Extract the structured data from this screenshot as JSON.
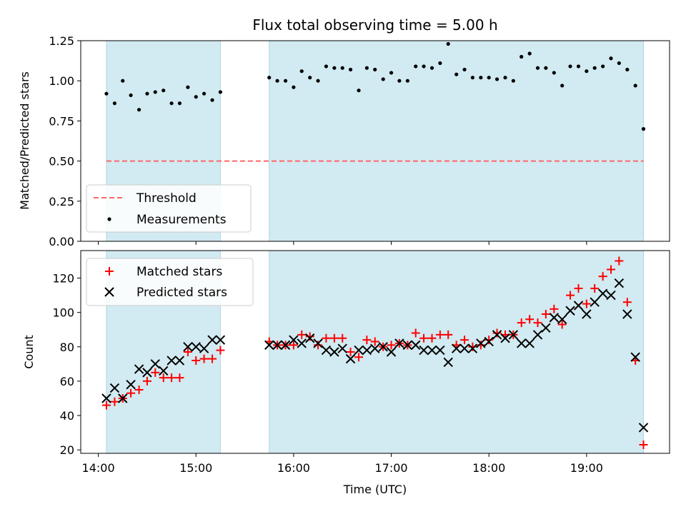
{
  "chart_data": [
    {
      "type": "scatter",
      "title": "Flux total observing time = 5.00 h",
      "ylabel": "Matched/Predicted stars",
      "xlabel": "",
      "x_unit": "hours UTC",
      "xlim": [
        13.82,
        19.85
      ],
      "ylim": [
        0.0,
        1.25
      ],
      "yticks": [
        0.0,
        0.25,
        0.5,
        0.75,
        1.0,
        1.25
      ],
      "ytick_labels": [
        "0.00",
        "0.25",
        "0.50",
        "0.75",
        "1.00",
        "1.25"
      ],
      "xticks": [
        14,
        15,
        16,
        17,
        18,
        19
      ],
      "grid": false,
      "legend_position": "lower-left",
      "shaded_intervals": [
        [
          14.083,
          15.25
        ],
        [
          15.75,
          19.583
        ]
      ],
      "shade_color": "#add8e6",
      "threshold": {
        "name": "Threshold",
        "value": 0.5,
        "xrange": [
          14.083,
          19.583
        ],
        "color": "#ff6666"
      },
      "series": [
        {
          "name": "Measurements",
          "color": "#000000",
          "marker": "dot",
          "x": [
            14.083,
            14.167,
            14.25,
            14.333,
            14.417,
            14.5,
            14.583,
            14.667,
            14.75,
            14.833,
            14.917,
            15.0,
            15.083,
            15.167,
            15.25,
            15.75,
            15.833,
            15.917,
            16.0,
            16.083,
            16.167,
            16.25,
            16.333,
            16.417,
            16.5,
            16.583,
            16.667,
            16.75,
            16.833,
            16.917,
            17.0,
            17.083,
            17.167,
            17.25,
            17.333,
            17.417,
            17.5,
            17.583,
            17.667,
            17.75,
            17.833,
            17.917,
            18.0,
            18.083,
            18.167,
            18.25,
            18.333,
            18.417,
            18.5,
            18.583,
            18.667,
            18.75,
            18.833,
            18.917,
            19.0,
            19.083,
            19.167,
            19.25,
            19.333,
            19.417,
            19.5,
            19.583
          ],
          "y": [
            0.92,
            0.86,
            1.0,
            0.91,
            0.82,
            0.92,
            0.93,
            0.94,
            0.86,
            0.86,
            0.96,
            0.9,
            0.92,
            0.88,
            0.93,
            1.02,
            1.0,
            1.0,
            0.96,
            1.06,
            1.02,
            1.0,
            1.09,
            1.08,
            1.08,
            1.07,
            0.94,
            1.08,
            1.07,
            1.01,
            1.05,
            1.0,
            1.0,
            1.09,
            1.09,
            1.08,
            1.11,
            1.23,
            1.04,
            1.07,
            1.02,
            1.02,
            1.02,
            1.01,
            1.02,
            1.0,
            1.15,
            1.17,
            1.08,
            1.08,
            1.05,
            0.97,
            1.09,
            1.09,
            1.06,
            1.08,
            1.09,
            1.14,
            1.11,
            1.07,
            0.97,
            0.7
          ]
        }
      ]
    },
    {
      "type": "scatter",
      "title": "",
      "ylabel": "Count",
      "xlabel": "Time (UTC)",
      "x_unit": "hours UTC",
      "xlim": [
        13.82,
        19.85
      ],
      "ylim": [
        18,
        136
      ],
      "yticks": [
        20,
        40,
        60,
        80,
        100,
        120
      ],
      "ytick_labels": [
        "20",
        "40",
        "60",
        "80",
        "100",
        "120"
      ],
      "xticks": [
        14,
        15,
        16,
        17,
        18,
        19
      ],
      "xtick_labels": [
        "14:00",
        "15:00",
        "16:00",
        "17:00",
        "18:00",
        "19:00"
      ],
      "grid": false,
      "legend_position": "upper-left",
      "shaded_intervals": [
        [
          14.083,
          15.25
        ],
        [
          15.75,
          19.583
        ]
      ],
      "shade_color": "#add8e6",
      "series": [
        {
          "name": "Matched stars",
          "color": "#ff0000",
          "marker": "plus",
          "x": [
            14.083,
            14.167,
            14.25,
            14.333,
            14.417,
            14.5,
            14.583,
            14.667,
            14.75,
            14.833,
            14.917,
            15.0,
            15.083,
            15.167,
            15.25,
            15.75,
            15.833,
            15.917,
            16.0,
            16.083,
            16.167,
            16.25,
            16.333,
            16.417,
            16.5,
            16.583,
            16.667,
            16.75,
            16.833,
            16.917,
            17.0,
            17.083,
            17.167,
            17.25,
            17.333,
            17.417,
            17.5,
            17.583,
            17.667,
            17.75,
            17.833,
            17.917,
            18.0,
            18.083,
            18.167,
            18.25,
            18.333,
            18.417,
            18.5,
            18.583,
            18.667,
            18.75,
            18.833,
            18.917,
            19.0,
            19.083,
            19.167,
            19.25,
            19.333,
            19.417,
            19.5,
            19.583
          ],
          "y": [
            46,
            48,
            50,
            53,
            55,
            60,
            65,
            62,
            62,
            62,
            77,
            72,
            73,
            73,
            78,
            83,
            81,
            81,
            81,
            87,
            86,
            81,
            85,
            85,
            85,
            77,
            74,
            84,
            83,
            80,
            81,
            82,
            81,
            88,
            85,
            85,
            87,
            87,
            81,
            84,
            80,
            81,
            84,
            88,
            87,
            87,
            94,
            96,
            94,
            99,
            102,
            93,
            110,
            114,
            105,
            114,
            121,
            125,
            130,
            106,
            72,
            23
          ]
        },
        {
          "name": "Predicted stars",
          "color": "#000000",
          "marker": "x",
          "x": [
            14.083,
            14.167,
            14.25,
            14.333,
            14.417,
            14.5,
            14.583,
            14.667,
            14.75,
            14.833,
            14.917,
            15.0,
            15.083,
            15.167,
            15.25,
            15.75,
            15.833,
            15.917,
            16.0,
            16.083,
            16.167,
            16.25,
            16.333,
            16.417,
            16.5,
            16.583,
            16.667,
            16.75,
            16.833,
            16.917,
            17.0,
            17.083,
            17.167,
            17.25,
            17.333,
            17.417,
            17.5,
            17.583,
            17.667,
            17.75,
            17.833,
            17.917,
            18.0,
            18.083,
            18.167,
            18.25,
            18.333,
            18.417,
            18.5,
            18.583,
            18.667,
            18.75,
            18.833,
            18.917,
            19.0,
            19.083,
            19.167,
            19.25,
            19.333,
            19.417,
            19.5,
            19.583
          ],
          "y": [
            50,
            56,
            50,
            58,
            67,
            65,
            70,
            66,
            72,
            72,
            80,
            80,
            79,
            84,
            84,
            81,
            81,
            81,
            84,
            82,
            85,
            82,
            78,
            77,
            79,
            73,
            78,
            78,
            79,
            80,
            77,
            82,
            81,
            81,
            78,
            78,
            78,
            71,
            79,
            79,
            79,
            82,
            83,
            87,
            85,
            87,
            82,
            82,
            87,
            91,
            97,
            96,
            101,
            104,
            99,
            106,
            111,
            110,
            117,
            99,
            74,
            33
          ]
        }
      ]
    }
  ]
}
